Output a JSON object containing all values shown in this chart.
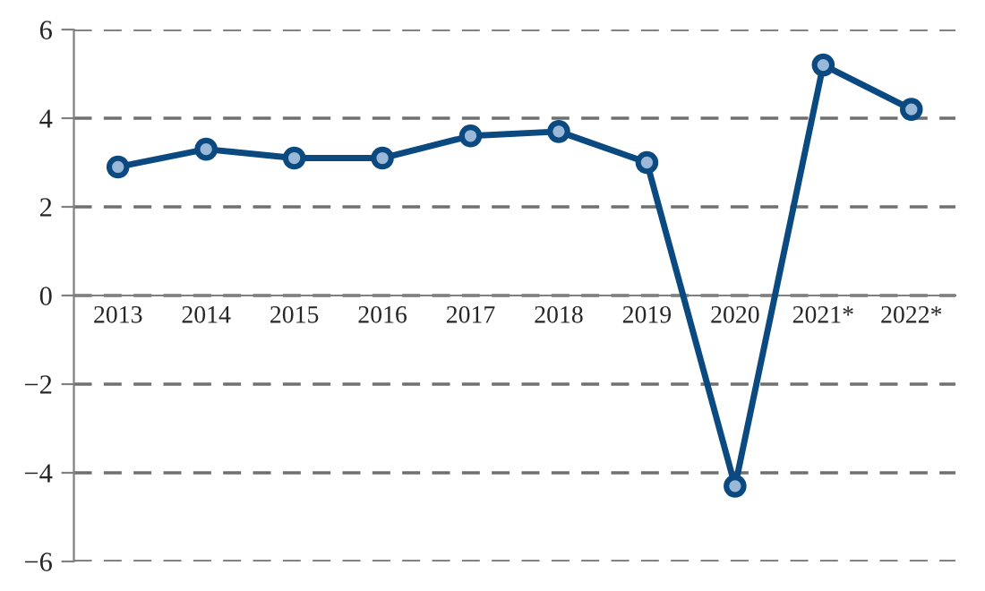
{
  "chart_data": {
    "type": "line",
    "categories": [
      "2013",
      "2014",
      "2015",
      "2016",
      "2017",
      "2018",
      "2019",
      "2020",
      "2021*",
      "2022*"
    ],
    "series": [
      {
        "color": "#0b4a80",
        "values": [
          2.9,
          3.3,
          3.1,
          3.1,
          3.6,
          3.7,
          3.0,
          -4.3,
          5.2,
          4.2
        ]
      }
    ],
    "ylim": [
      -6,
      6
    ],
    "yticks": [
      {
        "value": -6,
        "label": "−6"
      },
      {
        "value": -4,
        "label": "−4"
      },
      {
        "value": -2,
        "label": "−2"
      },
      0,
      2,
      4,
      6
    ],
    "grid": "y",
    "marker": "circle",
    "line_style": "solid",
    "legend": false
  }
}
